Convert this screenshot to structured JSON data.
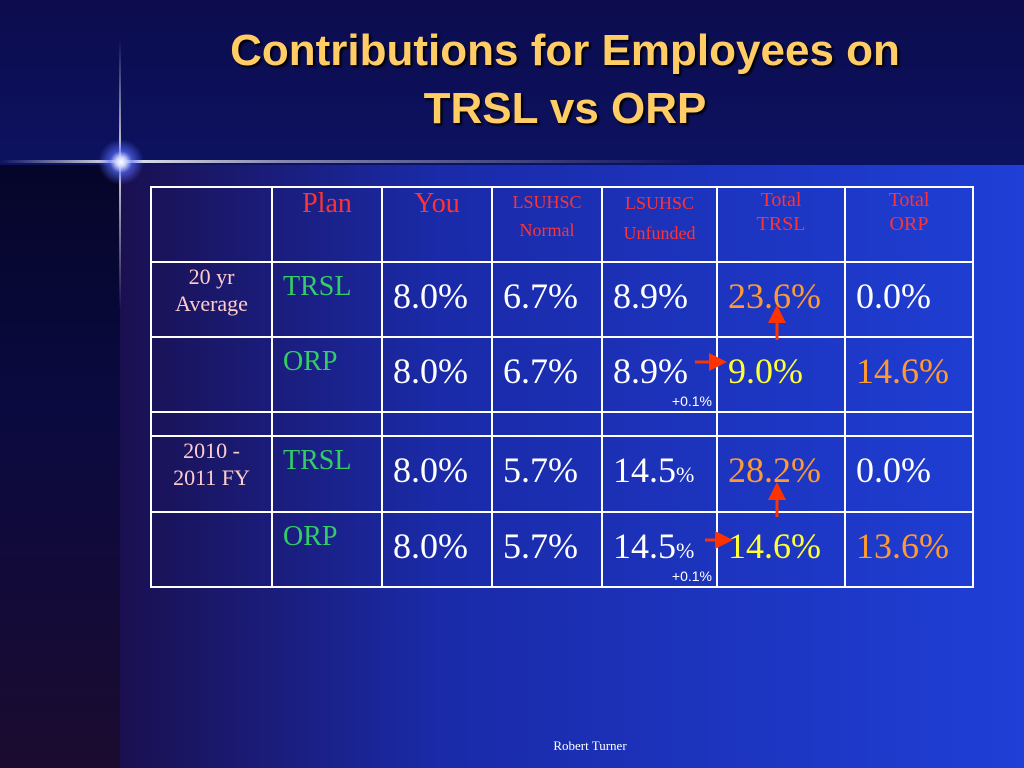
{
  "slide": {
    "title_line1": "Contributions for Employees on",
    "title_line2": "TRSL vs ORP",
    "footer": "Robert Turner"
  },
  "table": {
    "headers": {
      "plan": "Plan",
      "you": "You",
      "normal_1": "LSUHSC",
      "normal_2": "Normal",
      "unfunded_1": "LSUHSC",
      "unfunded_2": "Unfunded",
      "total_trsl_1": "Total",
      "total_trsl_2": "TRSL",
      "total_orp_1": "Total",
      "total_orp_2": "ORP"
    },
    "groups": [
      {
        "label_line1": "20 yr",
        "label_line2": "Average",
        "rows": [
          {
            "plan": "TRSL",
            "you": "8.0%",
            "normal": "6.7%",
            "unfunded": "8.9%",
            "unfunded_pct": "",
            "total_trsl": "23.6%",
            "total_orp": "0.0%",
            "delta": ""
          },
          {
            "plan": "ORP",
            "you": "8.0%",
            "normal": "6.7%",
            "unfunded": "8.9%",
            "unfunded_pct": "",
            "total_trsl": "9.0%",
            "total_orp": "14.6%",
            "delta": "+0.1%"
          }
        ]
      },
      {
        "label_line1": "2010 -",
        "label_line2": "2011 FY",
        "rows": [
          {
            "plan": "TRSL",
            "you": "8.0%",
            "normal": "5.7%",
            "unfunded": "14.5",
            "unfunded_pct": "%",
            "total_trsl": "28.2%",
            "total_orp": "0.0%",
            "delta": ""
          },
          {
            "plan": "ORP",
            "you": "8.0%",
            "normal": "5.7%",
            "unfunded": "14.5",
            "unfunded_pct": "%",
            "total_trsl": "14.6%",
            "total_orp": "13.6%",
            "delta": "+0.1%"
          }
        ]
      }
    ]
  },
  "colors": {
    "title": "#ffcc66",
    "header": "#ff3333",
    "plan": "#33cc66",
    "highlight_orange": "#ff9933",
    "highlight_yellow": "#ffff33",
    "arrow": "#ff3300"
  }
}
